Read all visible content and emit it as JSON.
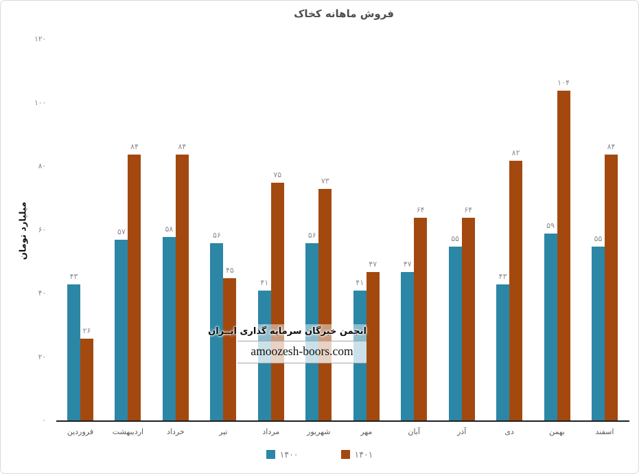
{
  "title": "فروش ماهانه کخاک",
  "y_axis_title": "میلیارد تومان",
  "watermark": {
    "line1": "انجمن خبرگان سرمایه گذاری ایــران",
    "line2": "amoozesh-boors.com"
  },
  "colors": {
    "series_1400": "#2C86A6",
    "series_1401": "#A3490F",
    "axis_line": "#1f1f1f",
    "title_text": "#4d4d4d",
    "tick_text": "#808080",
    "value_label_text": "#8c8c8c",
    "legend_text": "#7f7f7f",
    "card_border": "#d9d9d9"
  },
  "chart_data": {
    "type": "bar",
    "title": "فروش ماهانه کخاک",
    "xlabel": "",
    "ylabel": "میلیارد تومان",
    "categories": [
      "فروردین",
      "اردیبهشت",
      "خرداد",
      "تیر",
      "مرداد",
      "شهریور",
      "مهر",
      "آبان",
      "آذر",
      "دی",
      "بهمن",
      "اسفند"
    ],
    "series": [
      {
        "name": "۱۴۰۰",
        "color": "#2C86A6",
        "values": [
          43,
          57,
          58,
          56,
          41,
          56,
          41,
          47,
          55,
          43,
          59,
          55
        ]
      },
      {
        "name": "۱۴۰۱",
        "color": "#A3490F",
        "values": [
          26,
          84,
          84,
          45,
          75,
          73,
          47,
          64,
          64,
          82,
          104,
          84
        ]
      }
    ],
    "ylim": [
      0,
      120
    ],
    "ytick_step": 20,
    "ytick_labels": [
      "۰",
      "۲۰",
      "۴۰",
      "۶۰",
      "۸۰",
      "۱۰۰",
      "۱۲۰"
    ],
    "grid": false,
    "legend_position": "bottom",
    "bar_value_labels": true,
    "number_locale": "fa"
  }
}
